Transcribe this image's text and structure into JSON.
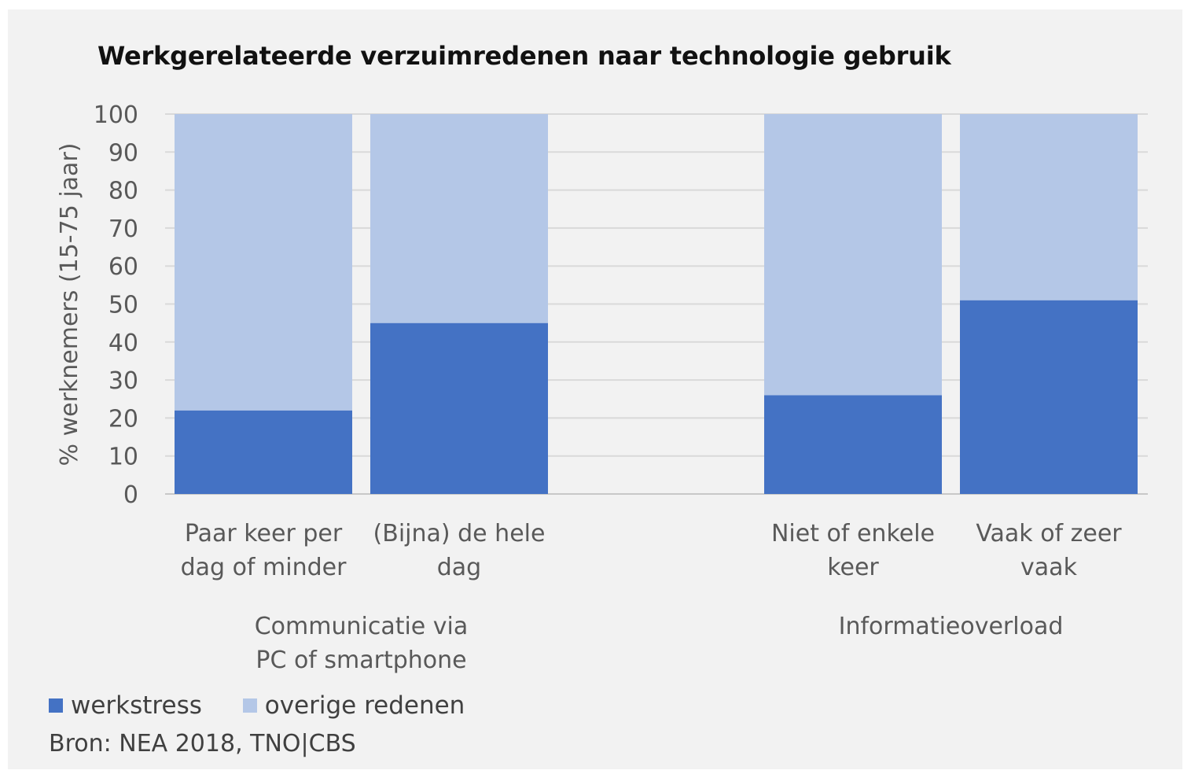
{
  "chart_data": {
    "type": "bar",
    "stacked": true,
    "title": "Werkgerelateerde verzuimredenen naar technologie gebruik",
    "ylabel": "% werknemers (15-75 jaar)",
    "ylim": [
      0,
      100
    ],
    "yticks": [
      0,
      10,
      20,
      30,
      40,
      50,
      60,
      70,
      80,
      90,
      100
    ],
    "grid": true,
    "legend_position": "bottom-left",
    "groups": [
      {
        "label": [
          "Communicatie via",
          "PC of smartphone"
        ],
        "categories": [
          {
            "label": [
              "Paar keer per",
              "dag of minder"
            ],
            "werkstress": 22,
            "overige": 78
          },
          {
            "label": [
              "(Bijna) de hele",
              "dag"
            ],
            "werkstress": 45,
            "overige": 55
          }
        ]
      },
      {
        "label": [
          "Informatieoverload"
        ],
        "categories": [
          {
            "label": [
              "Niet of enkele",
              "keer"
            ],
            "werkstress": 26,
            "overige": 74
          },
          {
            "label": [
              "Vaak of zeer",
              "vaak"
            ],
            "werkstress": 51,
            "overige": 49
          }
        ]
      }
    ],
    "series": [
      {
        "key": "werkstress",
        "name": "werkstress",
        "color": "#4472c4"
      },
      {
        "key": "overige",
        "name": "overige redenen",
        "color": "#b4c7e7"
      }
    ]
  },
  "source": "Bron: NEA 2018, TNO|CBS"
}
